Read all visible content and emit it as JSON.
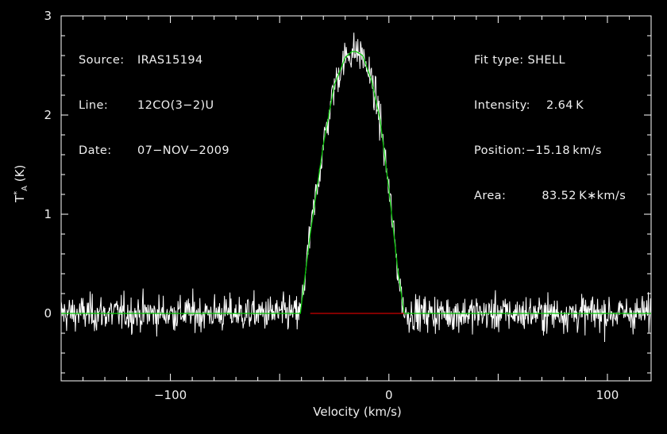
{
  "chart_data": {
    "type": "line",
    "xlabel": "Velocity (km/s)",
    "ylabel_main": "T",
    "ylabel_sup": "*",
    "ylabel_sub": "A",
    "ylabel_unit": "(K)",
    "xlim": [
      -150,
      120
    ],
    "ylim": [
      -0.68,
      3.0
    ],
    "xticks_major": [
      -100,
      0,
      100
    ],
    "xtick_labels": [
      "−100",
      "0",
      "100"
    ],
    "yticks_major": [
      0,
      1,
      2,
      3
    ],
    "ytick_labels": [
      "0",
      "1",
      "2",
      "3"
    ],
    "grid": false,
    "series": [
      {
        "role": "spectrum",
        "color": "#ffffff",
        "baseline_noise_rms": 0.13,
        "v_start": -150,
        "v_end": 120,
        "channel_width": 0.25
      },
      {
        "role": "fit",
        "color": "#00c800",
        "x": [
          -150,
          -40.5,
          -36,
          -30,
          -25,
          -20,
          -17,
          -15,
          -12,
          -8,
          -4,
          0,
          4,
          7,
          120
        ],
        "y": [
          0,
          0,
          0.8,
          1.7,
          2.3,
          2.58,
          2.64,
          2.64,
          2.6,
          2.35,
          1.95,
          1.25,
          0.45,
          0,
          0
        ]
      },
      {
        "role": "baseline-window",
        "color": "#cc0000",
        "x": [
          -36,
          7
        ],
        "y": [
          0,
          0
        ]
      }
    ]
  },
  "header_left": [
    {
      "key": "Source:",
      "value": "IRAS15194"
    },
    {
      "key": "Line:",
      "value": "12CO(3−2)U"
    },
    {
      "key": "Date:",
      "value": "07−NOV−2009"
    }
  ],
  "header_right": [
    {
      "key": "Fit type:",
      "value": " SHELL"
    },
    {
      "key": "Intensity:",
      "value": "    2.64 K"
    },
    {
      "key": "Position:",
      "value": "−15.18 km/s"
    },
    {
      "key": "Area:",
      "value": "         83.52 K∗km/s"
    }
  ],
  "colors": {
    "background": "#000000",
    "axes": "#ffffff",
    "spectrum": "#ffffff",
    "fit": "#00c800",
    "baseline": "#cc0000"
  }
}
